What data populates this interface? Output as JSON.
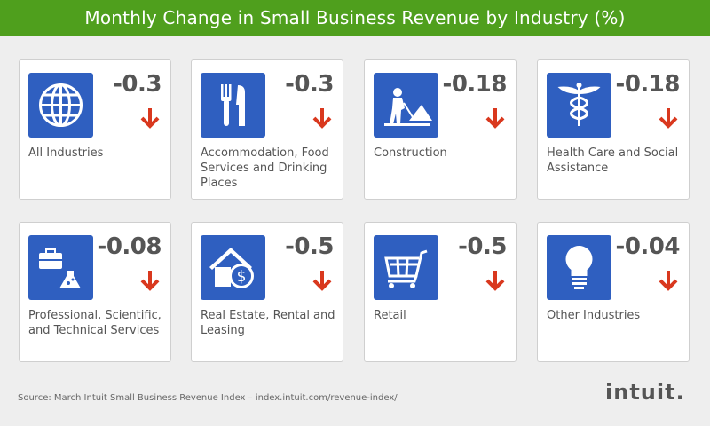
{
  "title": "Monthly Change in Small Business Revenue by Industry (%)",
  "colors": {
    "header": "#4f9f1d",
    "icon_bg": "#2f5fc0",
    "arrow": "#d9381e"
  },
  "cards": [
    {
      "label": "All Industries",
      "value": "-0.3",
      "icon": "globe-icon",
      "direction": "down"
    },
    {
      "label": "Accommodation, Food Services and Drinking Places",
      "value": "-0.3",
      "icon": "fork-knife-icon",
      "direction": "down"
    },
    {
      "label": "Construction",
      "value": "-0.18",
      "icon": "construction-worker-icon",
      "direction": "down"
    },
    {
      "label": "Health Care and Social Assistance",
      "value": "-0.18",
      "icon": "caduceus-icon",
      "direction": "down"
    },
    {
      "label": "Professional, Scientific, and Technical Services",
      "value": "-0.08",
      "icon": "briefcase-flask-icon",
      "direction": "down"
    },
    {
      "label": "Real Estate, Rental and Leasing",
      "value": "-0.5",
      "icon": "house-dollar-icon",
      "direction": "down"
    },
    {
      "label": "Retail",
      "value": "-0.5",
      "icon": "shopping-cart-icon",
      "direction": "down"
    },
    {
      "label": "Other Industries",
      "value": "-0.04",
      "icon": "lightbulb-icon",
      "direction": "down"
    }
  ],
  "source": "Source: March Intuit Small Business Revenue Index – index.intuit.com/revenue-index/",
  "logo": "intuit."
}
